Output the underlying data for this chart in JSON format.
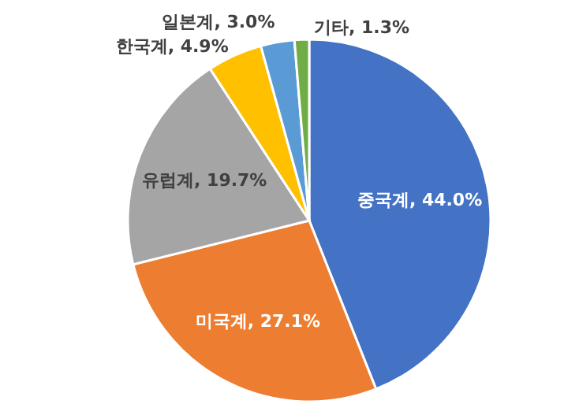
{
  "chart_data": {
    "type": "pie",
    "categories": [
      "중국계",
      "미국계",
      "유럽계",
      "한국계",
      "일본계",
      "기타"
    ],
    "values": [
      44.0,
      27.1,
      19.7,
      4.9,
      3.0,
      1.3
    ],
    "value_labels": [
      "44.0%",
      "27.1%",
      "19.7%",
      "4.9%",
      "3.0%",
      "1.3%"
    ],
    "colors": [
      "#4472c4",
      "#ed7d31",
      "#a5a5a5",
      "#ffc000",
      "#5b9bd5",
      "#70ad47"
    ]
  }
}
